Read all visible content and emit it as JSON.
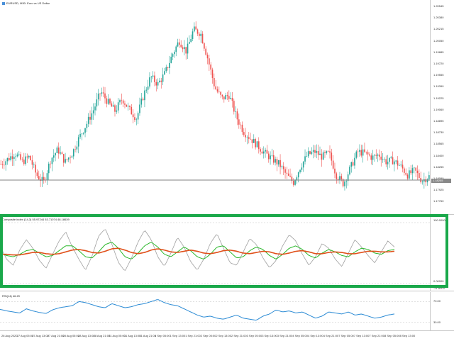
{
  "main": {
    "title": "EURUSD, M30: Euro vs US Dollar",
    "icon": "chart-window-icon",
    "price_ticks": [
      "1.20545",
      "1.20380",
      "1.20215",
      "1.20050",
      "1.19885",
      "1.19720",
      "1.19555",
      "1.19390",
      "1.19225",
      "1.19060",
      "1.18895",
      "1.18730",
      "1.18565",
      "1.18400",
      "1.18255",
      "1.18090",
      "1.17925",
      "1.17760"
    ],
    "current_price": "1.18255",
    "colors": {
      "bull": "#26a69a",
      "bear": "#ef5350",
      "level_line": "#808080"
    }
  },
  "composite": {
    "title": "Composite index (14,3) 55.97244 53.71074 48.18639",
    "ticks": [
      "100.00000",
      "0.00000",
      "-21.8000"
    ],
    "colors": {
      "raw": "#a0a0a0",
      "fast": "#2cb82c",
      "slow": "#e0501a"
    }
  },
  "rsi": {
    "title": "RSI(14) 46.29",
    "ticks": [
      "70.00",
      "30.00"
    ],
    "color": "#2a8ad4"
  },
  "time_labels": [
    "26 Aug 2020",
    "27 Aug 05:00",
    "27 Aug 13:00",
    "27 Aug 21:00",
    "28 Aug 05:00",
    "28 Aug 13:00",
    "28 Aug 21:00",
    "31 Aug 05:00",
    "31 Aug 13:00",
    "31 Aug 21:00",
    "1 Sep 05:00",
    "1 Sep 13:00",
    "1 Sep 21:00",
    "2 Sep 05:00",
    "2 Sep 13:00",
    "2 Sep 21:00",
    "3 Sep 05:00",
    "3 Sep 13:00",
    "3 Sep 21:00",
    "4 Sep 05:00",
    "4 Sep 13:00",
    "4 Sep 21:00",
    "7 Sep 05:00",
    "7 Sep 13:00",
    "7 Sep 21:00",
    "8 Sep 05:00",
    "8 Sep 13:00"
  ],
  "series": {
    "close_profile": [
      1.1835,
      1.1842,
      1.185,
      1.1838,
      1.1845,
      1.182,
      1.181,
      1.1842,
      1.1855,
      1.1838,
      1.185,
      1.1872,
      1.189,
      1.191,
      1.1935,
      1.192,
      1.1908,
      1.1925,
      1.191,
      1.1898,
      1.193,
      1.1955,
      1.1945,
      1.196,
      1.1985,
      1.2005,
      1.199,
      1.202,
      1.2015,
      1.198,
      1.194,
      1.1925,
      1.193,
      1.19,
      1.188,
      1.187,
      1.186,
      1.185,
      1.1842,
      1.1835,
      1.182,
      1.181,
      1.1832,
      1.1848,
      1.1852,
      1.1845,
      1.185,
      1.182,
      1.1808,
      1.183,
      1.1852,
      1.185,
      1.1844,
      1.1848,
      1.1838,
      1.184,
      1.1832,
      1.182,
      1.1826,
      1.1812,
      1.1818
    ],
    "rsi_profile": [
      55,
      52,
      50,
      48,
      56,
      52,
      49,
      47,
      54,
      58,
      60,
      62,
      70,
      68,
      64,
      60,
      58,
      66,
      62,
      58,
      60,
      64,
      66,
      70,
      74,
      68,
      64,
      62,
      56,
      50,
      44,
      40,
      42,
      38,
      36,
      40,
      44,
      38,
      36,
      34,
      42,
      46,
      54,
      50,
      52,
      48,
      50,
      44,
      38,
      42,
      50,
      48,
      46,
      50,
      44,
      46,
      42,
      38,
      40,
      44,
      46
    ],
    "comp_raw": [
      62,
      40,
      30,
      55,
      72,
      58,
      38,
      25,
      48,
      70,
      85,
      60,
      40,
      22,
      45,
      78,
      90,
      65,
      35,
      20,
      42,
      68,
      88,
      72,
      44,
      28,
      50,
      76,
      60,
      36,
      22,
      40,
      66,
      82,
      58,
      34,
      30,
      52,
      74,
      64,
      42,
      26,
      38,
      62,
      80,
      70,
      48,
      30,
      44,
      66,
      58,
      40,
      28,
      50,
      72,
      60,
      46,
      34,
      52,
      70,
      60
    ],
    "comp_fast": [
      50,
      46,
      44,
      48,
      54,
      56,
      50,
      44,
      46,
      54,
      62,
      62,
      54,
      44,
      42,
      52,
      64,
      68,
      58,
      44,
      40,
      50,
      62,
      68,
      60,
      48,
      44,
      52,
      60,
      54,
      44,
      40,
      48,
      60,
      62,
      52,
      42,
      44,
      54,
      60,
      56,
      46,
      40,
      48,
      58,
      62,
      56,
      46,
      42,
      50,
      56,
      52,
      46,
      44,
      52,
      58,
      56,
      50,
      48,
      54,
      56
    ],
    "comp_slow": [
      48,
      48,
      47,
      47,
      49,
      51,
      51,
      49,
      48,
      49,
      52,
      55,
      56,
      54,
      51,
      50,
      53,
      57,
      58,
      55,
      51,
      49,
      51,
      55,
      57,
      55,
      52,
      51,
      53,
      55,
      53,
      50,
      49,
      51,
      54,
      55,
      53,
      50,
      49,
      51,
      53,
      52,
      49,
      48,
      50,
      53,
      54,
      52,
      49,
      49,
      51,
      52,
      51,
      49,
      49,
      51,
      53,
      53,
      52,
      52,
      53
    ]
  }
}
